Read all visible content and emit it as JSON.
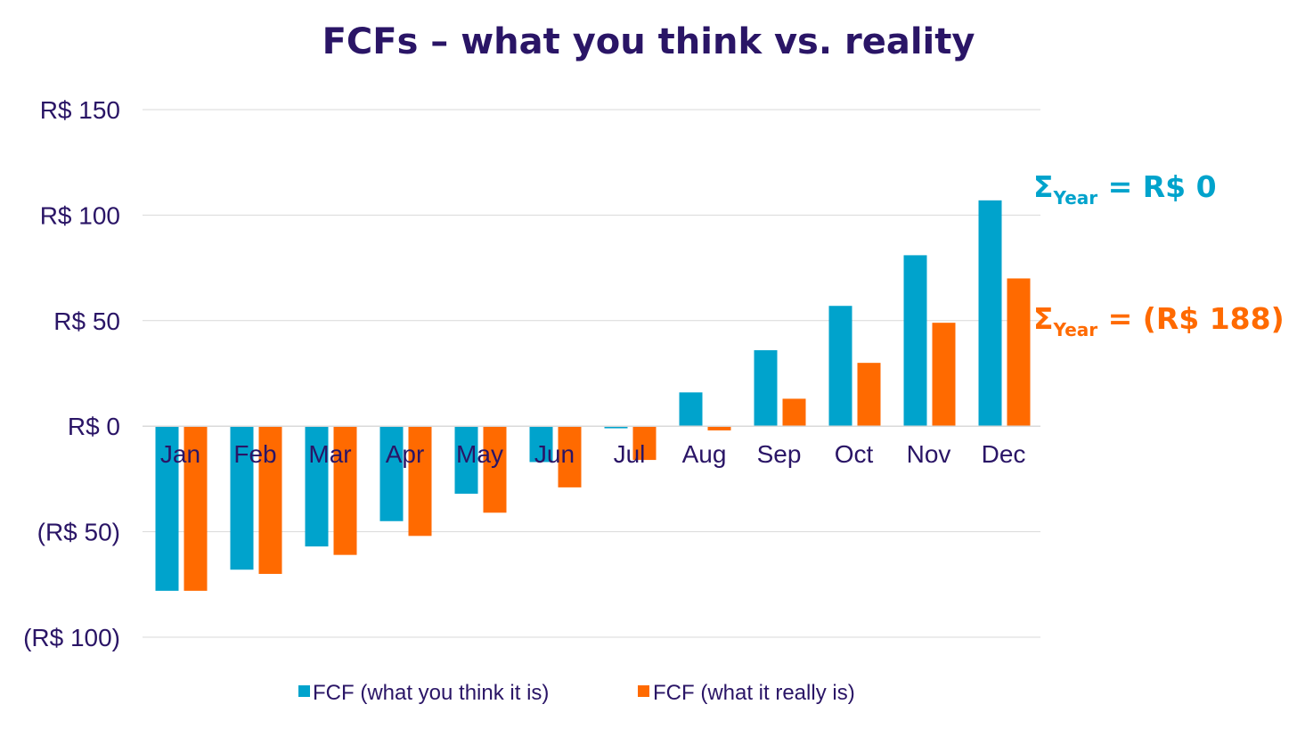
{
  "chart_data": {
    "type": "bar",
    "title": "FCFs – what you think vs. reality",
    "categories": [
      "Jan",
      "Feb",
      "Mar",
      "Apr",
      "May",
      "Jun",
      "Jul",
      "Aug",
      "Sep",
      "Oct",
      "Nov",
      "Dec"
    ],
    "series": [
      {
        "name": "FCF (what you think it is)",
        "color": "#00a3cc",
        "values": [
          -78,
          -68,
          -57,
          -45,
          -32,
          -17,
          -1,
          16,
          36,
          57,
          81,
          107
        ]
      },
      {
        "name": "FCF (what it really is)",
        "color": "#ff6a00",
        "values": [
          -78,
          -70,
          -61,
          -52,
          -41,
          -29,
          -16,
          -2,
          13,
          30,
          49,
          70
        ]
      }
    ],
    "ylim": [
      -100,
      150
    ],
    "yticks": [
      150,
      100,
      50,
      0,
      -50,
      -100
    ],
    "ytick_labels": [
      "R$ 150",
      "R$ 100",
      "R$ 50",
      "R$ 0",
      "(R$ 50)",
      "(R$ 100)"
    ],
    "xlabel": "",
    "ylabel": "",
    "grid": true,
    "legend": "bottom-center",
    "annotations": [
      {
        "sigma": "Σ",
        "subscript": "Year",
        "text": " = R$ 0",
        "color": "#00a3cc"
      },
      {
        "sigma": "Σ",
        "subscript": "Year",
        "text": " = (R$ 188)",
        "color": "#ff6a00"
      }
    ]
  }
}
